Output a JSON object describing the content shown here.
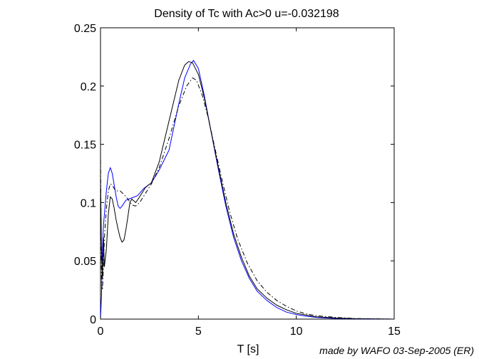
{
  "chart_data": {
    "type": "line",
    "title": "Density of Tc with Ac>0  u=-0.032198",
    "xlabel": "T [s]",
    "ylabel": "",
    "xlim": [
      0,
      15
    ],
    "ylim": [
      0,
      0.25
    ],
    "xticks": [
      0,
      5,
      10,
      15
    ],
    "xtick_labels": [
      "0",
      "5",
      "10",
      "15"
    ],
    "yticks": [
      0,
      0.05,
      0.1,
      0.15,
      0.2,
      0.25
    ],
    "ytick_labels": [
      "0",
      "0.05",
      "0.1",
      "0.15",
      "0.2",
      "0.25"
    ],
    "grid": false,
    "series": [
      {
        "color": "#0000ff",
        "style": "solid",
        "x": [
          0,
          0.05,
          0.1,
          0.15,
          0.2,
          0.3,
          0.4,
          0.5,
          0.6,
          0.7,
          0.8,
          0.9,
          1.0,
          1.1,
          1.3,
          1.6,
          1.9,
          2.2,
          2.6,
          3.0,
          3.5,
          4.0,
          4.3,
          4.6,
          4.75,
          5.0,
          5.3,
          5.6,
          6.0,
          6.4,
          6.8,
          7.2,
          7.6,
          8.0,
          8.5,
          9.0,
          9.5,
          10.0,
          10.5,
          11.0,
          11.5,
          12.0,
          13.0,
          14.0,
          15.0
        ],
        "y": [
          0,
          0.02,
          0.06,
          0.08,
          0.09,
          0.11,
          0.125,
          0.13,
          0.125,
          0.115,
          0.105,
          0.097,
          0.095,
          0.097,
          0.102,
          0.104,
          0.106,
          0.112,
          0.117,
          0.128,
          0.145,
          0.185,
          0.207,
          0.219,
          0.222,
          0.215,
          0.192,
          0.165,
          0.13,
          0.097,
          0.07,
          0.05,
          0.035,
          0.024,
          0.016,
          0.01,
          0.006,
          0.004,
          0.0025,
          0.0015,
          0.001,
          0.0006,
          0.0002,
          0.0001,
          0
        ]
      },
      {
        "color": "#000000",
        "style": "solid",
        "x": [
          0,
          0.05,
          0.1,
          0.15,
          0.2,
          0.3,
          0.4,
          0.5,
          0.6,
          0.7,
          0.8,
          0.9,
          1.0,
          1.1,
          1.2,
          1.3,
          1.4,
          1.5,
          1.6,
          1.8,
          2.0,
          2.3,
          2.6,
          3.0,
          3.5,
          4.0,
          4.3,
          4.5,
          4.7,
          5.0,
          5.3,
          5.6,
          6.0,
          6.4,
          6.8,
          7.2,
          7.6,
          8.0,
          8.5,
          9.0,
          9.5,
          10.0,
          10.5,
          11.0,
          12.0,
          13.0,
          15.0
        ],
        "y": [
          0.12,
          0.06,
          0.035,
          0.07,
          0.045,
          0.06,
          0.09,
          0.105,
          0.103,
          0.095,
          0.085,
          0.077,
          0.07,
          0.066,
          0.068,
          0.077,
          0.088,
          0.1,
          0.103,
          0.1,
          0.105,
          0.113,
          0.117,
          0.135,
          0.17,
          0.205,
          0.218,
          0.221,
          0.22,
          0.21,
          0.19,
          0.165,
          0.132,
          0.1,
          0.073,
          0.053,
          0.037,
          0.026,
          0.018,
          0.012,
          0.008,
          0.005,
          0.0035,
          0.002,
          0.001,
          0.0004,
          0
        ]
      },
      {
        "color": "#000000",
        "style": "dashdot",
        "x": [
          0,
          0.05,
          0.1,
          0.15,
          0.2,
          0.3,
          0.4,
          0.5,
          0.6,
          0.7,
          0.8,
          0.9,
          1.0,
          1.2,
          1.4,
          1.6,
          1.8,
          2.0,
          2.3,
          2.6,
          3.0,
          3.5,
          4.0,
          4.4,
          4.7,
          4.9,
          5.2,
          5.5,
          5.8,
          6.2,
          6.6,
          7.0,
          7.5,
          8.0,
          8.5,
          9.0,
          9.5,
          10.0,
          10.5,
          11.0,
          12.0,
          13.0,
          15.0
        ],
        "y": [
          0.145,
          0.03,
          0.025,
          0.045,
          0.07,
          0.095,
          0.11,
          0.116,
          0.115,
          0.112,
          0.11,
          0.11,
          0.11,
          0.107,
          0.103,
          0.098,
          0.097,
          0.1,
          0.108,
          0.116,
          0.13,
          0.155,
          0.183,
          0.2,
          0.207,
          0.205,
          0.192,
          0.173,
          0.15,
          0.12,
          0.092,
          0.069,
          0.048,
          0.033,
          0.023,
          0.016,
          0.011,
          0.007,
          0.0045,
          0.003,
          0.0015,
          0.0005,
          0
        ]
      }
    ]
  },
  "credit": "made by WAFO 03-Sep-2005 (ER)"
}
